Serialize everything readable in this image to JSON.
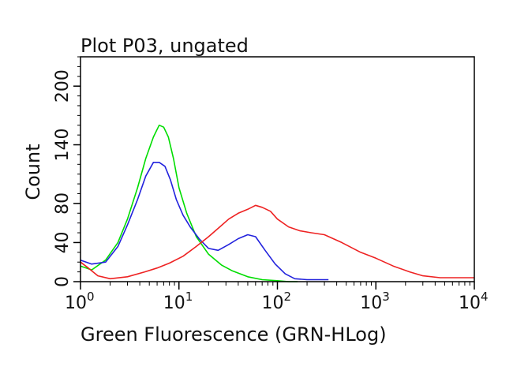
{
  "chart_data": {
    "type": "line",
    "title": "Plot P03, ungated",
    "xlabel": "Green Fluorescence (GRN-HLog)",
    "ylabel": "Count",
    "x_scale": "log",
    "xlim": [
      1,
      10000
    ],
    "ylim": [
      0,
      230
    ],
    "grid": false,
    "x_ticks": [
      {
        "base": "10",
        "exp": "0",
        "value": 1
      },
      {
        "base": "10",
        "exp": "1",
        "value": 10
      },
      {
        "base": "10",
        "exp": "2",
        "value": 100
      },
      {
        "base": "10",
        "exp": "3",
        "value": 1000
      },
      {
        "base": "10",
        "exp": "4",
        "value": 10000
      }
    ],
    "y_ticks": [
      "0",
      "40",
      "80",
      "140",
      "200"
    ],
    "y_tick_values": [
      0,
      40,
      80,
      140,
      200
    ],
    "series": [
      {
        "color": "#00dd00",
        "x": [
          1,
          1.3,
          1.8,
          2.4,
          3.0,
          3.8,
          4.6,
          5.5,
          6.3,
          7.0,
          7.8,
          8.8,
          10,
          12,
          15,
          20,
          27,
          35,
          50,
          70,
          100,
          130,
          160
        ],
        "y": [
          16,
          12,
          22,
          40,
          64,
          96,
          126,
          148,
          160,
          158,
          148,
          126,
          96,
          70,
          46,
          28,
          17,
          11,
          5,
          2,
          1,
          0,
          0
        ]
      },
      {
        "color": "#2222dd",
        "x": [
          1,
          1.3,
          1.8,
          2.4,
          3.0,
          3.8,
          4.6,
          5.5,
          6.3,
          7.2,
          8.2,
          9.4,
          11,
          13,
          16,
          20,
          25,
          32,
          40,
          50,
          60,
          75,
          95,
          120,
          150,
          200,
          270,
          330
        ],
        "y": [
          22,
          18,
          20,
          36,
          58,
          84,
          108,
          122,
          122,
          118,
          104,
          84,
          68,
          56,
          44,
          34,
          32,
          38,
          44,
          48,
          46,
          32,
          18,
          8,
          3,
          2,
          2,
          2
        ]
      },
      {
        "color": "#ee2222",
        "x": [
          1,
          1.2,
          1.5,
          2,
          3,
          4.5,
          6,
          8,
          11,
          15,
          20,
          26,
          32,
          40,
          50,
          60,
          70,
          85,
          100,
          130,
          170,
          220,
          300,
          450,
          700,
          1000,
          1500,
          2200,
          3000,
          4500,
          6500,
          10000
        ],
        "y": [
          20,
          14,
          6,
          3,
          5,
          10,
          14,
          19,
          26,
          36,
          46,
          56,
          64,
          70,
          74,
          78,
          76,
          72,
          64,
          56,
          52,
          50,
          48,
          40,
          30,
          24,
          16,
          10,
          6,
          4,
          4,
          4
        ]
      }
    ]
  }
}
